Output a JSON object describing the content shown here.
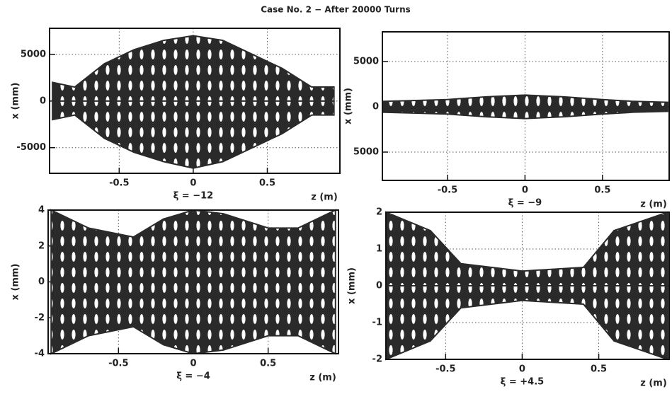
{
  "title": "Case No. 2  −  After 20000 Turns",
  "chart_data": [
    {
      "type": "area",
      "annotation": "ξ = −12",
      "xlabel": "z (m)",
      "ylabel": "x (mm)",
      "x": [
        -0.95,
        -0.8,
        -0.6,
        -0.4,
        -0.2,
        0,
        0.2,
        0.4,
        0.6,
        0.8,
        0.95
      ],
      "series": [
        {
          "color": "#2a2a2a",
          "values": [
            2000,
            1500,
            4000,
            5500,
            6500,
            7000,
            6500,
            5000,
            3500,
            1500,
            1500
          ]
        },
        {
          "color": "#2a2a2a",
          "values": [
            -2000,
            -1500,
            -4000,
            -5500,
            -6500,
            -7200,
            -6500,
            -5000,
            -3500,
            -1500,
            -1500
          ]
        }
      ],
      "xlim": [
        -0.97,
        0.99
      ],
      "ylim": [
        -7750,
        7800
      ],
      "xticks": [
        -0.5,
        0,
        0.5
      ],
      "yticks": [
        5000,
        0,
        -5000
      ],
      "grid": true
    },
    {
      "type": "area",
      "annotation": "ξ = −9",
      "xlabel": "z (m)",
      "ylabel": "x (mm)",
      "x": [
        -0.92,
        -0.7,
        -0.5,
        -0.25,
        0,
        0.25,
        0.5,
        0.7,
        0.92
      ],
      "series": [
        {
          "color": "#2a2a2a",
          "values": [
            600,
            700,
            800,
            1100,
            1300,
            1100,
            800,
            600,
            500
          ]
        },
        {
          "color": "#2a2a2a",
          "values": [
            -600,
            -700,
            -800,
            -1100,
            -1300,
            -1100,
            -800,
            -600,
            -500
          ]
        }
      ],
      "xlim": [
        -0.92,
        0.93
      ],
      "ylim": [
        -8125,
        8280
      ],
      "xticks": [
        -0.5,
        0,
        0.5
      ],
      "yticks": [
        5000,
        0,
        {
          "value": -5000,
          "label": "5000"
        }
      ],
      "grid": true
    },
    {
      "type": "area",
      "annotation": "ξ = −4",
      "xlabel": "z (m)",
      "ylabel": "x (mm)",
      "x": [
        -0.95,
        -0.7,
        -0.4,
        -0.2,
        0,
        0.2,
        0.5,
        0.7,
        0.95
      ],
      "series": [
        {
          "color": "#2a2a2a",
          "values": [
            4,
            3,
            2.5,
            3.5,
            4,
            3.8,
            3,
            3,
            4
          ]
        },
        {
          "color": "#2a2a2a",
          "values": [
            -4,
            -3,
            -2.5,
            -3.5,
            -4,
            -3.8,
            -3,
            -3,
            -4
          ]
        }
      ],
      "xlim": [
        -0.97,
        0.97
      ],
      "ylim": [
        -4,
        4
      ],
      "xticks": [
        -0.5,
        0,
        0.5
      ],
      "yticks": [
        4,
        2,
        0,
        -2,
        -4
      ],
      "grid": true
    },
    {
      "type": "area",
      "annotation": "ξ = +4.5",
      "xlabel": "z (m)",
      "ylabel": "x (mm)",
      "x": [
        -0.89,
        -0.6,
        -0.4,
        0,
        0.4,
        0.6,
        0.95
      ],
      "series": [
        {
          "color": "#2a2a2a",
          "values": [
            2,
            1.5,
            0.6,
            0.4,
            0.5,
            1.5,
            2
          ]
        },
        {
          "color": "#2a2a2a",
          "values": [
            -2,
            -1.5,
            -0.6,
            -0.4,
            -0.5,
            -1.5,
            -2
          ]
        }
      ],
      "xlim": [
        -0.89,
        0.96
      ],
      "ylim": [
        -2,
        2
      ],
      "xticks": [
        -0.5,
        0,
        0.5
      ],
      "yticks": [
        2,
        1,
        0,
        -1,
        -2
      ],
      "grid": true
    }
  ]
}
